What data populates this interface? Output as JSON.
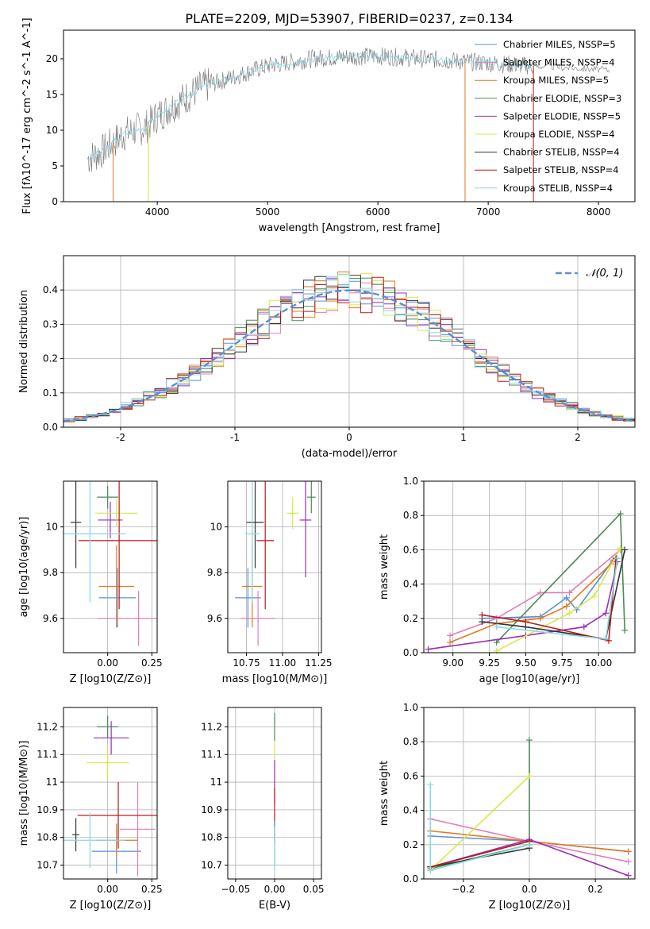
{
  "figure_title": "PLATE=2209, MJD=53907, FIBERID=0237, z=0.134",
  "colors": {
    "Chabrier MILES": "#5b8fd8",
    "Salpeter MILES": "#e07db8",
    "Kroupa MILES": "#e07a20",
    "Chabrier ELODIE": "#4a8a55",
    "Salpeter ELODIE": "#9a2fb4",
    "Kroupa ELODIE": "#d8e84a",
    "Chabrier STELIB": "#333333",
    "Salpeter STELIB": "#b81a1a",
    "Kroupa STELIB": "#86d8e6",
    "spectrum": "#777777",
    "normal": "#5b8fd8"
  },
  "chart_data": [
    {
      "id": "spectrum",
      "type": "line",
      "title": "PLATE=2209, MJD=53907, FIBERID=0237, z=0.134",
      "xlabel": "wavelength [Angstrom, rest frame]",
      "ylabel": "Flux [fλ10^-17 erg cm^-2 s^-1 A^-1]",
      "xlim": [
        3150,
        8330
      ],
      "ylim": [
        0,
        24
      ],
      "xticks": [
        4000,
        5000,
        6000,
        7000,
        8000
      ],
      "yticks": [
        0,
        5,
        10,
        15,
        20
      ],
      "grid": false,
      "legend_position": "top-right",
      "legend": [
        "Chabrier MILES, NSSP=5",
        "Salpeter MILES, NSSP=4",
        "Kroupa MILES, NSSP=5",
        "Chabrier ELODIE, NSSP=3",
        "Salpeter ELODIE, NSSP=5",
        "Kroupa ELODIE, NSSP=4",
        "Chabrier STELIB, NSSP=4",
        "Salpeter STELIB, NSSP=4",
        "Kroupa STELIB, NSSP=4"
      ],
      "continuum": {
        "x": [
          3370,
          3500,
          3700,
          3900,
          4000,
          4200,
          4400,
          4600,
          4800,
          5000,
          5200,
          5400,
          5600,
          5800,
          6000,
          6200,
          6400,
          6600,
          6800,
          7000,
          7200,
          7400,
          7600,
          7800,
          8000,
          8100
        ],
        "y": [
          6.0,
          7.0,
          9.5,
          10.5,
          12.0,
          14.0,
          16.0,
          17.0,
          18.0,
          19.0,
          19.5,
          20.0,
          20.2,
          20.3,
          20.4,
          20.2,
          20.0,
          19.8,
          19.6,
          19.4,
          19.2,
          19.0,
          18.9,
          18.7,
          18.5,
          18.4
        ]
      }
    },
    {
      "id": "residuals",
      "type": "histogram",
      "xlabel": "(data-model)/error",
      "ylabel": "Normed distribution",
      "xlim": [
        -2.5,
        2.5
      ],
      "ylim": [
        0,
        0.5
      ],
      "xticks": [
        -2,
        -1,
        0,
        1,
        2
      ],
      "yticks": [
        0.0,
        0.1,
        0.2,
        0.3,
        0.4
      ],
      "grid": true,
      "legend_position": "top-right",
      "legend": [
        "𝒩(0, 1)"
      ],
      "reference": "N(0,1)",
      "bin_width": 0.1
    },
    {
      "id": "Z-age",
      "type": "scatter",
      "xlabel": "Z [log10(Z/Z⊙)]",
      "ylabel": "age  [log10(age/yr)]",
      "xlim": [
        -0.25,
        0.28
      ],
      "ylim": [
        9.45,
        10.2
      ],
      "xticks": [
        0.0,
        0.25
      ],
      "xticklabels": [
        "0.00",
        "0.25"
      ],
      "yticks": [
        9.6,
        9.8,
        10.0
      ],
      "grid": true,
      "points": [
        {
          "model": "Chabrier MILES",
          "x": 0.055,
          "xerr": 0.105,
          "y": 9.69,
          "yerr": 0.13
        },
        {
          "model": "Salpeter MILES",
          "x": 0.175,
          "xerr": 0.23,
          "y": 9.6,
          "yerr": 0.12
        },
        {
          "model": "Kroupa MILES",
          "x": 0.05,
          "xerr": 0.1,
          "y": 9.74,
          "yerr": 0.18
        },
        {
          "model": "Chabrier ELODIE",
          "x": 0.0,
          "xerr": 0.06,
          "y": 10.13,
          "yerr": 0.05
        },
        {
          "model": "Salpeter ELODIE",
          "x": 0.015,
          "xerr": 0.07,
          "y": 10.03,
          "yerr": 0.08
        },
        {
          "model": "Kroupa ELODIE",
          "x": 0.05,
          "xerr": 0.12,
          "y": 10.06,
          "yerr": 0.06
        },
        {
          "model": "Chabrier STELIB",
          "x": -0.18,
          "xerr": 0.03,
          "y": 10.02,
          "yerr": 0.2
        },
        {
          "model": "Salpeter STELIB",
          "x": 0.065,
          "xerr": 0.23,
          "y": 9.94,
          "yerr": 0.3
        },
        {
          "model": "Kroupa STELIB",
          "x": -0.1,
          "xerr": 0.2,
          "y": 9.97,
          "yerr": 0.3
        }
      ]
    },
    {
      "id": "mass-age",
      "type": "scatter",
      "xlabel": "mass [log10(M/M⊙)]",
      "ylabel": "",
      "xlim": [
        10.62,
        11.27
      ],
      "ylim": [
        9.45,
        10.2
      ],
      "xticks": [
        10.75,
        11.0,
        11.25
      ],
      "xticklabels": [
        "10.75",
        "11.00",
        "11.25"
      ],
      "yticks": [
        9.6,
        9.8,
        10.0
      ],
      "grid": true,
      "points": [
        {
          "model": "Chabrier MILES",
          "x": 10.76,
          "xerr": 0.09,
          "y": 9.69,
          "yerr": 0.13
        },
        {
          "model": "Salpeter MILES",
          "x": 10.83,
          "xerr": 0.12,
          "y": 9.6,
          "yerr": 0.12
        },
        {
          "model": "Kroupa MILES",
          "x": 10.79,
          "xerr": 0.07,
          "y": 9.74,
          "yerr": 0.18
        },
        {
          "model": "Chabrier ELODIE",
          "x": 11.2,
          "xerr": 0.03,
          "y": 10.13,
          "yerr": 0.07
        },
        {
          "model": "Salpeter ELODIE",
          "x": 11.16,
          "xerr": 0.04,
          "y": 10.03,
          "yerr": 0.25
        },
        {
          "model": "Kroupa ELODIE",
          "x": 11.07,
          "xerr": 0.04,
          "y": 10.06,
          "yerr": 0.07
        },
        {
          "model": "Chabrier STELIB",
          "x": 10.81,
          "xerr": 0.06,
          "y": 10.02,
          "yerr": 0.2
        },
        {
          "model": "Salpeter STELIB",
          "x": 10.88,
          "xerr": 0.06,
          "y": 9.94,
          "yerr": 0.3
        },
        {
          "model": "Kroupa STELIB",
          "x": 10.79,
          "xerr": 0.05,
          "y": 9.97,
          "yerr": 0.3
        }
      ]
    },
    {
      "id": "age-weight",
      "type": "line",
      "xlabel": "age  [log10(age/yr)]",
      "ylabel": "mass weight",
      "xlim": [
        8.8,
        10.25
      ],
      "ylim": [
        0,
        1
      ],
      "xticks": [
        9.0,
        9.25,
        9.5,
        9.75,
        10.0
      ],
      "xticklabels": [
        "9.00",
        "9.25",
        "9.50",
        "9.75",
        "10.00"
      ],
      "yticks": [
        0.0,
        0.2,
        0.4,
        0.6,
        0.8,
        1.0
      ],
      "grid": true,
      "series": [
        {
          "model": "Chabrier MILES",
          "x": [
            9.2,
            9.6,
            9.78,
            9.85,
            10.1
          ],
          "y": [
            0.2,
            0.21,
            0.32,
            0.25,
            0.54
          ]
        },
        {
          "model": "Salpeter MILES",
          "x": [
            8.98,
            9.3,
            9.6,
            9.8,
            10.15
          ],
          "y": [
            0.1,
            0.2,
            0.35,
            0.35,
            0.6
          ]
        },
        {
          "model": "Kroupa MILES",
          "x": [
            8.98,
            9.3,
            9.6,
            9.78,
            10.1
          ],
          "y": [
            0.06,
            0.17,
            0.2,
            0.27,
            0.53
          ]
        },
        {
          "model": "Chabrier ELODIE",
          "x": [
            9.3,
            10.15,
            10.18
          ],
          "y": [
            0.06,
            0.81,
            0.13
          ]
        },
        {
          "model": "Salpeter ELODIE",
          "x": [
            8.83,
            9.5,
            9.9,
            10.05,
            10.13
          ],
          "y": [
            0.02,
            0.1,
            0.15,
            0.23,
            0.53
          ]
        },
        {
          "model": "Kroupa ELODIE",
          "x": [
            9.3,
            9.8,
            9.97,
            10.15
          ],
          "y": [
            0.01,
            0.23,
            0.33,
            0.61
          ]
        },
        {
          "model": "Chabrier STELIB",
          "x": [
            9.2,
            9.5,
            10.05,
            10.18
          ],
          "y": [
            0.18,
            0.15,
            0.08,
            0.6
          ]
        },
        {
          "model": "Salpeter STELIB",
          "x": [
            9.2,
            9.5,
            10.07,
            10.12
          ],
          "y": [
            0.22,
            0.18,
            0.07,
            0.55
          ]
        },
        {
          "model": "Kroupa STELIB",
          "x": [
            9.3,
            10.05,
            10.13
          ],
          "y": [
            0.15,
            0.08,
            0.55
          ]
        }
      ]
    },
    {
      "id": "Z-mass",
      "type": "scatter",
      "xlabel": "Z [log10(Z/Z⊙)]",
      "ylabel": "mass [log10(M/M⊙)]",
      "xlim": [
        -0.25,
        0.28
      ],
      "ylim": [
        10.65,
        11.27
      ],
      "xticks": [
        0.0,
        0.25
      ],
      "xticklabels": [
        "0.00",
        "0.25"
      ],
      "yticks": [
        10.7,
        10.8,
        10.9,
        11.0,
        11.1,
        11.2
      ],
      "grid": true,
      "points": [
        {
          "model": "Chabrier MILES",
          "x": 0.05,
          "xerr": 0.14,
          "y": 10.75,
          "yerr": 0.08
        },
        {
          "model": "Salpeter MILES",
          "x": 0.17,
          "xerr": 0.1,
          "y": 10.83,
          "yerr": 0.17
        },
        {
          "model": "Kroupa MILES",
          "x": 0.05,
          "xerr": 0.12,
          "y": 10.79,
          "yerr": 0.06
        },
        {
          "model": "Chabrier ELODIE",
          "x": 0.0,
          "xerr": 0.06,
          "y": 11.2,
          "yerr": 0.04
        },
        {
          "model": "Salpeter ELODIE",
          "x": 0.02,
          "xerr": 0.1,
          "y": 11.16,
          "yerr": 0.06
        },
        {
          "model": "Kroupa ELODIE",
          "x": 0.0,
          "xerr": 0.12,
          "y": 11.07,
          "yerr": 0.06
        },
        {
          "model": "Chabrier STELIB",
          "x": -0.18,
          "xerr": 0.02,
          "y": 10.81,
          "yerr": 0.06
        },
        {
          "model": "Salpeter STELIB",
          "x": 0.06,
          "xerr": 0.23,
          "y": 10.88,
          "yerr": 0.12
        },
        {
          "model": "Kroupa STELIB",
          "x": -0.1,
          "xerr": 0.2,
          "y": 10.79,
          "yerr": 0.1
        }
      ]
    },
    {
      "id": "EBV-mass",
      "type": "scatter",
      "xlabel": "E(B-V)",
      "ylabel": "",
      "xlim": [
        -0.06,
        0.06
      ],
      "ylim": [
        10.65,
        11.27
      ],
      "xticks": [
        -0.05,
        0.0,
        0.05
      ],
      "xticklabels": [
        "−0.05",
        "0.00",
        "0.05"
      ],
      "yticks": [
        10.7,
        10.8,
        10.9,
        11.0,
        11.1,
        11.2
      ],
      "grid": true,
      "points": [
        {
          "model": "Chabrier ELODIE",
          "x": 0.0,
          "xerr": 0,
          "y": 11.2,
          "yerr": 0.05
        },
        {
          "model": "Kroupa ELODIE",
          "x": 0.0,
          "xerr": 0,
          "y": 11.07,
          "yerr": 0.07
        },
        {
          "model": "Salpeter ELODIE",
          "x": 0.0,
          "xerr": 0,
          "y": 11.0,
          "yerr": 0.08
        },
        {
          "model": "Salpeter STELIB",
          "x": 0.0,
          "xerr": 0,
          "y": 10.88,
          "yerr": 0.1
        },
        {
          "model": "Chabrier MILES",
          "x": 0.0,
          "xerr": 0,
          "y": 10.78,
          "yerr": 0.08
        },
        {
          "model": "Kroupa STELIB",
          "x": 0.0,
          "xerr": 0,
          "y": 10.76,
          "yerr": 0.08
        }
      ]
    },
    {
      "id": "Z-weight",
      "type": "line",
      "xlabel": "Z [log10(Z/Z⊙)]",
      "ylabel": "mass weight",
      "xlim": [
        -0.32,
        0.32
      ],
      "ylim": [
        0,
        1
      ],
      "xticks": [
        -0.2,
        0.0,
        0.2
      ],
      "xticklabels": [
        "−0.2",
        "0.0",
        "0.2"
      ],
      "yticks": [
        0.0,
        0.2,
        0.4,
        0.6,
        0.8,
        1.0
      ],
      "grid": true,
      "series": [
        {
          "model": "Chabrier MILES",
          "x": [
            -0.3,
            0.0,
            0.3
          ],
          "y": [
            0.25,
            0.22,
            0.16
          ]
        },
        {
          "model": "Salpeter MILES",
          "x": [
            -0.3,
            0.0,
            0.3
          ],
          "y": [
            0.35,
            0.22,
            0.1
          ]
        },
        {
          "model": "Kroupa MILES",
          "x": [
            -0.3,
            0.0,
            0.3
          ],
          "y": [
            0.28,
            0.22,
            0.16
          ]
        },
        {
          "model": "Chabrier ELODIE",
          "x": [
            -0.3,
            0.0,
            0.0
          ],
          "y": [
            0.06,
            0.2,
            0.81
          ]
        },
        {
          "model": "Salpeter ELODIE",
          "x": [
            -0.3,
            0.0,
            0.3
          ],
          "y": [
            0.07,
            0.23,
            0.02
          ]
        },
        {
          "model": "Kroupa ELODIE",
          "x": [
            -0.3,
            0.0
          ],
          "y": [
            0.05,
            0.6
          ]
        },
        {
          "model": "Chabrier STELIB",
          "x": [
            -0.3,
            0.0
          ],
          "y": [
            0.07,
            0.18
          ]
        },
        {
          "model": "Salpeter STELIB",
          "x": [
            -0.3,
            0.0
          ],
          "y": [
            0.07,
            0.22
          ]
        },
        {
          "model": "Kroupa STELIB",
          "x": [
            -0.3,
            -0.3,
            0.0
          ],
          "y": [
            0.55,
            0.05,
            0.2
          ]
        }
      ]
    }
  ]
}
